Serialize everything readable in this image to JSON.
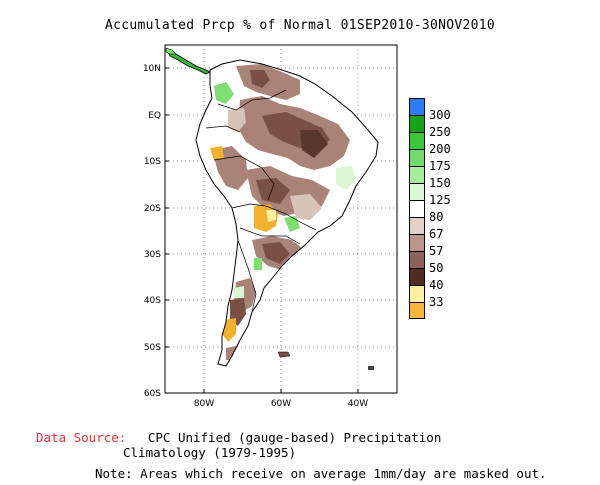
{
  "title": "Accumulated Prcp % of Normal 01SEP2010-30NOV2010",
  "map": {
    "lat_labels": [
      "10N",
      "EQ",
      "10S",
      "20S",
      "30S",
      "40S",
      "50S",
      "60S"
    ],
    "lon_labels": [
      "80W",
      "60W",
      "40W"
    ],
    "colors": {
      "land_outline": "#000000",
      "dry_dark": "#7a4f45",
      "dry_mid": "#a98378",
      "dry_light": "#d8c3b8",
      "very_dry": "#f0b030",
      "wet_light": "#d9f5d1",
      "wet_mid": "#7fde72",
      "wet_high": "#3cb43c"
    }
  },
  "legend": {
    "items": [
      {
        "label": "300",
        "color": "#2a7df0"
      },
      {
        "label": "250",
        "color": "#17a317"
      },
      {
        "label": "200",
        "color": "#3bc93b"
      },
      {
        "label": "175",
        "color": "#73db6b"
      },
      {
        "label": "150",
        "color": "#a7ec9d"
      },
      {
        "label": "125",
        "color": "#dcf7d7"
      },
      {
        "label": "80",
        "color": "#ffffff"
      },
      {
        "label": "67",
        "color": "#e2cfc6"
      },
      {
        "label": "57",
        "color": "#b89689"
      },
      {
        "label": "50",
        "color": "#8a6459"
      },
      {
        "label": "40",
        "color": "#4e2e22"
      },
      {
        "label": "33",
        "color": "#fff0a0"
      },
      {
        "label": "",
        "color": "#f5b63b"
      }
    ]
  },
  "footer": {
    "source_label": "Data Source:",
    "source_line1": "CPC Unified (gauge-based) Precipitation",
    "source_line2": "Climatology (1979-1995)",
    "note": "Note: Areas which receive on average 1mm/day are masked out."
  }
}
